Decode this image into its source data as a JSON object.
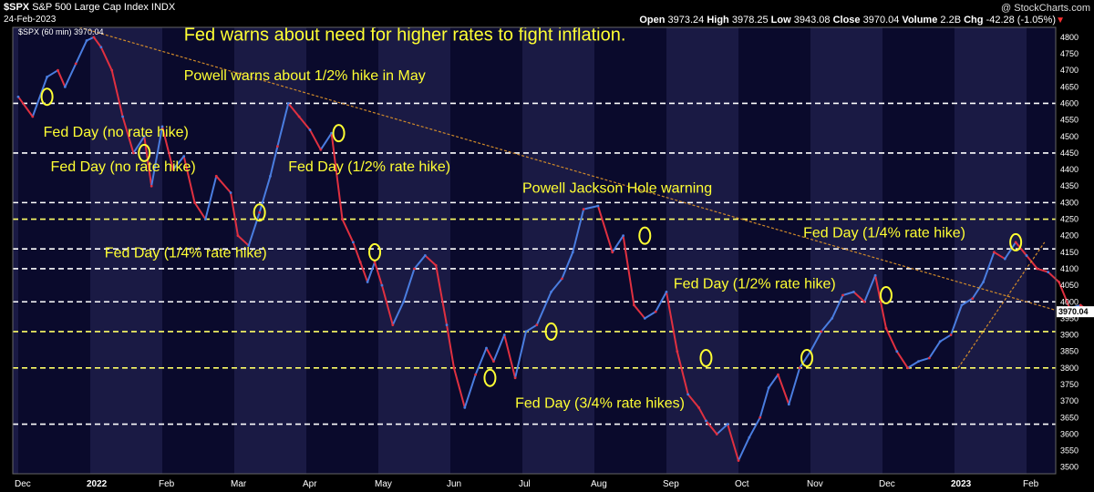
{
  "header": {
    "symbol": "$SPX",
    "name": "S&P 500 Large Cap Index",
    "exchange": "INDX",
    "date": "24-Feb-2023",
    "open_label": "Open",
    "open": "3973.24",
    "high_label": "High",
    "high": "3978.25",
    "low_label": "Low",
    "low": "3943.08",
    "close_label": "Close",
    "close": "3970.04",
    "volume_label": "Volume",
    "volume": "2.2B",
    "chg_label": "Chg",
    "chg": "-42.28 (-1.05%)",
    "watermark": "@ StockCharts.com",
    "legend": "$SPX (60 min) 3970.04"
  },
  "chart_data": {
    "type": "line",
    "title": "",
    "xlabel": "",
    "ylabel": "",
    "ylim": [
      3480,
      4830
    ],
    "y_ticks": [
      3500,
      3550,
      3600,
      3650,
      3700,
      3750,
      3800,
      3850,
      3900,
      3950,
      4000,
      4050,
      4100,
      4150,
      4200,
      4250,
      4300,
      4350,
      4400,
      4450,
      4500,
      4550,
      4600,
      4650,
      4700,
      4750,
      4800
    ],
    "x_labels": [
      "Dec",
      "2022",
      "Feb",
      "Mar",
      "Apr",
      "May",
      "Jun",
      "Jul",
      "Aug",
      "Sep",
      "Oct",
      "Nov",
      "Dec",
      "2023",
      "Feb"
    ],
    "x_label_months": [
      0,
      1,
      2,
      3,
      4,
      5,
      6,
      7,
      8,
      9,
      10,
      11,
      12,
      13,
      14
    ],
    "bold_x_labels": [
      "2022",
      "2023"
    ],
    "last_price_label": "3970.04",
    "series": [
      {
        "x": [
          0.0,
          0.2,
          0.4,
          0.55,
          0.65,
          0.8,
          0.95,
          1.05,
          1.15,
          1.3,
          1.45,
          1.6,
          1.75,
          1.85,
          2.0,
          2.15,
          2.3,
          2.45,
          2.6,
          2.75,
          2.95,
          3.05,
          3.2,
          3.35,
          3.5,
          3.6,
          3.75,
          3.9,
          4.05,
          4.2,
          4.35,
          4.5,
          4.65,
          4.75,
          4.85,
          4.95,
          5.05,
          5.2,
          5.35,
          5.5,
          5.65,
          5.8,
          5.95,
          6.05,
          6.2,
          6.35,
          6.5,
          6.6,
          6.75,
          6.9,
          7.05,
          7.2,
          7.4,
          7.55,
          7.7,
          7.85,
          8.05,
          8.25,
          8.4,
          8.55,
          8.7,
          8.85,
          9.0,
          9.15,
          9.3,
          9.45,
          9.55,
          9.7,
          9.85,
          10.0,
          10.15,
          10.3,
          10.42,
          10.55,
          10.7,
          10.85,
          11.0,
          11.15,
          11.3,
          11.45,
          11.6,
          11.75,
          11.9,
          12.05,
          12.2,
          12.35,
          12.5,
          12.65,
          12.8,
          12.95,
          13.1,
          13.25,
          13.4,
          13.55,
          13.7,
          13.85,
          14.0,
          14.15,
          14.3,
          14.45,
          14.6,
          14.75,
          14.88
        ],
        "values": [
          4620,
          4560,
          4680,
          4700,
          4650,
          4720,
          4790,
          4800,
          4770,
          4700,
          4560,
          4450,
          4500,
          4350,
          4530,
          4400,
          4440,
          4300,
          4250,
          4380,
          4330,
          4200,
          4170,
          4270,
          4380,
          4470,
          4600,
          4560,
          4520,
          4460,
          4510,
          4250,
          4180,
          4120,
          4060,
          4120,
          4050,
          3930,
          4000,
          4100,
          4140,
          4110,
          3930,
          3800,
          3680,
          3780,
          3860,
          3820,
          3900,
          3770,
          3910,
          3930,
          4030,
          4070,
          4150,
          4280,
          4290,
          4150,
          4200,
          3990,
          3950,
          3970,
          4030,
          3850,
          3720,
          3680,
          3640,
          3600,
          3630,
          3520,
          3590,
          3650,
          3740,
          3780,
          3690,
          3800,
          3850,
          3910,
          3950,
          4020,
          4030,
          4000,
          4080,
          3920,
          3850,
          3800,
          3820,
          3830,
          3880,
          3900,
          3990,
          4010,
          4060,
          4150,
          4130,
          4180,
          4140,
          4100,
          4090,
          4060,
          3980,
          3990,
          3970
        ]
      }
    ],
    "horizontal_levels": [
      {
        "value": 4600,
        "color": "#ffffff"
      },
      {
        "value": 4450,
        "color": "#ffffff"
      },
      {
        "value": 4300,
        "color": "#ffffff"
      },
      {
        "value": 4250,
        "color": "#ffff66"
      },
      {
        "value": 4160,
        "color": "#ffffff"
      },
      {
        "value": 4100,
        "color": "#ffffff"
      },
      {
        "value": 4000,
        "color": "#ffffff"
      },
      {
        "value": 3910,
        "color": "#ffff66"
      },
      {
        "value": 3800,
        "color": "#ffff66"
      },
      {
        "value": 3630,
        "color": "#ffffff"
      }
    ],
    "trendlines": [
      {
        "x1": 0.85,
        "y1": 4830,
        "x2": 14.4,
        "y2": 3975,
        "color": "#d08a2a"
      },
      {
        "x1": 13.05,
        "y1": 3800,
        "x2": 14.25,
        "y2": 4180,
        "color": "#d08a2a"
      }
    ],
    "annotations": [
      {
        "text": "Fed warns about need for higher rates to fight inflation.",
        "x": 2.3,
        "y": 4790,
        "size": 20
      },
      {
        "text": "Powell warns about 1/2% hike in May",
        "x": 2.3,
        "y": 4670,
        "size": 16
      },
      {
        "text": "Fed Day (no rate hike)",
        "x": 0.35,
        "y": 4500,
        "size": 16
      },
      {
        "text": "Fed Day (no rate hike)",
        "x": 0.45,
        "y": 4395,
        "size": 16
      },
      {
        "text": "Fed Day (1/2% rate hike)",
        "x": 3.75,
        "y": 4395,
        "size": 16
      },
      {
        "text": "Powell Jackson Hole warning",
        "x": 7.0,
        "y": 4330,
        "size": 16
      },
      {
        "text": "Fed Day (1/4% rate hike)",
        "x": 10.9,
        "y": 4195,
        "size": 16
      },
      {
        "text": "Fed Day (1/4% rate hike)",
        "x": 1.2,
        "y": 4135,
        "size": 16
      },
      {
        "text": "Fed Day (1/2% rate hike)",
        "x": 9.1,
        "y": 4040,
        "size": 16
      },
      {
        "text": "Fed Day (3/4% rate hikes)",
        "x": 6.9,
        "y": 3680,
        "size": 16
      }
    ]
  }
}
